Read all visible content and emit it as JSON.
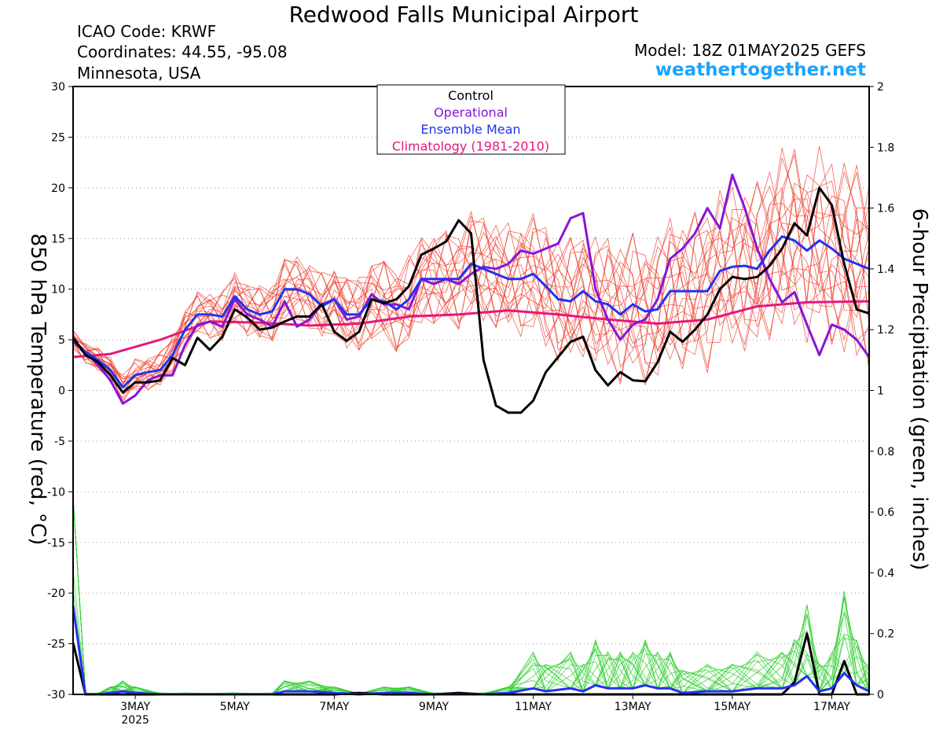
{
  "header": {
    "title": "Redwood Falls Municipal Airport",
    "icao": "ICAO Code: KRWF",
    "coords": "Coordinates: 44.55, -95.08",
    "state": "Minnesota, USA",
    "model": "Model: 18Z 01MAY2025 GEFS",
    "site": "weathertogether.net"
  },
  "colors": {
    "control": "#000000",
    "operational": "#8a14d6",
    "ensemble_mean": "#2233ee",
    "climatology": "#e6177f",
    "members_temp": "#ee3322",
    "members_precip": "#22cc22",
    "site": "#1aa3ff"
  },
  "chart_data": {
    "type": "line",
    "ylabel_left": "850 hPa Temperature (red, °C)",
    "ylabel_right": "6-hour Precipitation (green, inches)",
    "ylim_left": [
      -30,
      30
    ],
    "ylim_right": [
      0,
      2
    ],
    "yticks_left": [
      "30",
      "25",
      "20",
      "15",
      "10",
      "5",
      "0",
      "-5",
      "-10",
      "-15",
      "-20",
      "-25",
      "-30"
    ],
    "yticks_right": [
      "2",
      "1.8",
      "1.6",
      "1.4",
      "1.2",
      "1",
      "0.8",
      "0.6",
      "0.4",
      "0.2",
      "0"
    ],
    "xlim": [
      1.75,
      17.75
    ],
    "xticks": [
      {
        "day": 3,
        "label": "3MAY",
        "sub": "2025"
      },
      {
        "day": 5,
        "label": "5MAY",
        "sub": ""
      },
      {
        "day": 7,
        "label": "7MAY",
        "sub": ""
      },
      {
        "day": 9,
        "label": "9MAY",
        "sub": ""
      },
      {
        "day": 11,
        "label": "11MAY",
        "sub": ""
      },
      {
        "day": 13,
        "label": "13MAY",
        "sub": ""
      },
      {
        "day": 15,
        "label": "15MAY",
        "sub": ""
      },
      {
        "day": 17,
        "label": "17MAY",
        "sub": ""
      }
    ],
    "grid": true,
    "legend": {
      "placement": "top-center",
      "entries": [
        {
          "name": "Control",
          "color": "#000000"
        },
        {
          "name": "Operational",
          "color": "#8a14d6"
        },
        {
          "name": "Ensemble Mean",
          "color": "#2233ee"
        },
        {
          "name": "Climatology (1981-2010)",
          "color": "#e6177f"
        }
      ]
    },
    "temperature_series": [
      {
        "name": "Control",
        "color": "#000000",
        "points": [
          [
            1.75,
            5.2
          ],
          [
            2.0,
            3.5
          ],
          [
            2.25,
            2.8
          ],
          [
            2.5,
            1.5
          ],
          [
            2.75,
            -0.2
          ],
          [
            3.0,
            0.8
          ],
          [
            3.25,
            0.8
          ],
          [
            3.5,
            1.0
          ],
          [
            3.75,
            3.2
          ],
          [
            4.0,
            2.5
          ],
          [
            4.25,
            5.2
          ],
          [
            4.5,
            4.0
          ],
          [
            4.75,
            5.3
          ],
          [
            5.0,
            8.0
          ],
          [
            5.25,
            7.2
          ],
          [
            5.5,
            6.0
          ],
          [
            5.75,
            6.2
          ],
          [
            6.0,
            6.8
          ],
          [
            6.25,
            7.3
          ],
          [
            6.5,
            7.3
          ],
          [
            6.75,
            8.5
          ],
          [
            7.0,
            5.8
          ],
          [
            7.25,
            4.9
          ],
          [
            7.5,
            5.8
          ],
          [
            7.75,
            9.0
          ],
          [
            8.0,
            8.6
          ],
          [
            8.25,
            9.0
          ],
          [
            8.5,
            10.3
          ],
          [
            8.75,
            13.4
          ],
          [
            9.0,
            14.0
          ],
          [
            9.25,
            14.7
          ],
          [
            9.5,
            16.8
          ],
          [
            9.75,
            15.5
          ],
          [
            10.0,
            3.0
          ],
          [
            10.25,
            -1.5
          ],
          [
            10.5,
            -2.2
          ],
          [
            10.75,
            -2.2
          ],
          [
            11.0,
            -1.0
          ],
          [
            11.25,
            1.8
          ],
          [
            11.5,
            3.3
          ],
          [
            11.75,
            4.8
          ],
          [
            12.0,
            5.3
          ],
          [
            12.25,
            2.0
          ],
          [
            12.5,
            0.5
          ],
          [
            12.75,
            1.8
          ],
          [
            13.0,
            1.0
          ],
          [
            13.25,
            0.9
          ],
          [
            13.5,
            2.8
          ],
          [
            13.75,
            5.8
          ],
          [
            14.0,
            4.8
          ],
          [
            14.25,
            6.0
          ],
          [
            14.5,
            7.5
          ],
          [
            14.75,
            10.0
          ],
          [
            15.0,
            11.2
          ],
          [
            15.25,
            11.0
          ],
          [
            15.5,
            11.2
          ],
          [
            15.75,
            12.3
          ],
          [
            16.0,
            14.0
          ],
          [
            16.25,
            16.5
          ],
          [
            16.5,
            15.3
          ],
          [
            16.75,
            20.0
          ],
          [
            17.0,
            18.3
          ],
          [
            17.25,
            12.5
          ],
          [
            17.5,
            8.0
          ],
          [
            17.75,
            7.6
          ]
        ]
      },
      {
        "name": "Operational",
        "color": "#8a14d6",
        "points": [
          [
            1.75,
            4.8
          ],
          [
            2.0,
            3.8
          ],
          [
            2.25,
            2.5
          ],
          [
            2.5,
            1.0
          ],
          [
            2.75,
            -1.3
          ],
          [
            3.0,
            -0.5
          ],
          [
            3.25,
            1.0
          ],
          [
            3.5,
            1.5
          ],
          [
            3.75,
            1.5
          ],
          [
            4.0,
            4.5
          ],
          [
            4.25,
            6.5
          ],
          [
            4.5,
            6.8
          ],
          [
            4.75,
            6.3
          ],
          [
            5.0,
            9.0
          ],
          [
            5.25,
            7.5
          ],
          [
            5.5,
            7.0
          ],
          [
            5.75,
            6.3
          ],
          [
            6.0,
            8.8
          ],
          [
            6.25,
            6.3
          ],
          [
            6.5,
            7.0
          ],
          [
            6.75,
            8.5
          ],
          [
            7.0,
            9.0
          ],
          [
            7.25,
            7.0
          ],
          [
            7.5,
            7.3
          ],
          [
            7.75,
            9.5
          ],
          [
            8.0,
            8.5
          ],
          [
            8.25,
            8.5
          ],
          [
            8.5,
            8.0
          ],
          [
            8.75,
            11.0
          ],
          [
            9.0,
            10.5
          ],
          [
            9.25,
            11.0
          ],
          [
            9.5,
            10.5
          ],
          [
            9.75,
            11.5
          ],
          [
            10.0,
            12.2
          ],
          [
            10.25,
            12.0
          ],
          [
            10.5,
            12.5
          ],
          [
            10.75,
            13.8
          ],
          [
            11.0,
            13.5
          ],
          [
            11.25,
            14.0
          ],
          [
            11.5,
            14.5
          ],
          [
            11.75,
            17.0
          ],
          [
            12.0,
            17.5
          ],
          [
            12.25,
            10.0
          ],
          [
            12.5,
            7.0
          ],
          [
            12.75,
            5.0
          ],
          [
            13.0,
            6.5
          ],
          [
            13.25,
            7.0
          ],
          [
            13.5,
            9.0
          ],
          [
            13.75,
            13.0
          ],
          [
            14.0,
            14.0
          ],
          [
            14.25,
            15.5
          ],
          [
            14.5,
            18.0
          ],
          [
            14.75,
            16.0
          ],
          [
            15.0,
            21.3
          ],
          [
            15.25,
            18.0
          ],
          [
            15.5,
            14.0
          ],
          [
            15.75,
            11.0
          ],
          [
            16.0,
            8.7
          ],
          [
            16.25,
            9.7
          ],
          [
            16.5,
            6.5
          ],
          [
            16.75,
            3.5
          ],
          [
            17.0,
            6.5
          ],
          [
            17.25,
            6.0
          ],
          [
            17.5,
            5.0
          ],
          [
            17.75,
            3.3
          ]
        ]
      },
      {
        "name": "Ensemble Mean",
        "color": "#2233ee",
        "points": [
          [
            1.75,
            5.0
          ],
          [
            2.0,
            3.8
          ],
          [
            2.25,
            3.0
          ],
          [
            2.5,
            2.0
          ],
          [
            2.75,
            0.3
          ],
          [
            3.0,
            1.5
          ],
          [
            3.25,
            1.8
          ],
          [
            3.5,
            2.0
          ],
          [
            3.75,
            3.5
          ],
          [
            4.0,
            6.0
          ],
          [
            4.25,
            7.5
          ],
          [
            4.5,
            7.5
          ],
          [
            4.75,
            7.3
          ],
          [
            5.0,
            9.3
          ],
          [
            5.25,
            8.0
          ],
          [
            5.5,
            7.5
          ],
          [
            5.75,
            7.8
          ],
          [
            6.0,
            10.0
          ],
          [
            6.25,
            10.0
          ],
          [
            6.5,
            9.5
          ],
          [
            6.75,
            8.3
          ],
          [
            7.0,
            9.0
          ],
          [
            7.25,
            7.5
          ],
          [
            7.5,
            7.5
          ],
          [
            7.75,
            9.0
          ],
          [
            8.0,
            8.8
          ],
          [
            8.25,
            8.0
          ],
          [
            8.5,
            9.0
          ],
          [
            8.75,
            11.0
          ],
          [
            9.0,
            11.0
          ],
          [
            9.25,
            11.0
          ],
          [
            9.5,
            11.0
          ],
          [
            9.75,
            12.5
          ],
          [
            10.0,
            12.0
          ],
          [
            10.25,
            11.5
          ],
          [
            10.5,
            11.0
          ],
          [
            10.75,
            11.0
          ],
          [
            11.0,
            11.5
          ],
          [
            11.25,
            10.3
          ],
          [
            11.5,
            9.0
          ],
          [
            11.75,
            8.8
          ],
          [
            12.0,
            9.8
          ],
          [
            12.25,
            8.8
          ],
          [
            12.5,
            8.5
          ],
          [
            12.75,
            7.5
          ],
          [
            13.0,
            8.5
          ],
          [
            13.25,
            7.8
          ],
          [
            13.5,
            8.0
          ],
          [
            13.75,
            9.8
          ],
          [
            14.0,
            9.8
          ],
          [
            14.25,
            9.8
          ],
          [
            14.5,
            9.8
          ],
          [
            14.75,
            11.8
          ],
          [
            15.0,
            12.2
          ],
          [
            15.25,
            12.3
          ],
          [
            15.5,
            12.0
          ],
          [
            15.75,
            13.8
          ],
          [
            16.0,
            15.2
          ],
          [
            16.25,
            14.8
          ],
          [
            16.5,
            13.8
          ],
          [
            16.75,
            14.8
          ],
          [
            17.0,
            14.0
          ],
          [
            17.25,
            13.0
          ],
          [
            17.5,
            12.5
          ],
          [
            17.75,
            12.0
          ]
        ]
      },
      {
        "name": "Climatology (1981-2010)",
        "color": "#e6177f",
        "points": [
          [
            1.75,
            3.3
          ],
          [
            2.5,
            3.6
          ],
          [
            3.5,
            5.0
          ],
          [
            4.5,
            6.8
          ],
          [
            5.5,
            6.7
          ],
          [
            6.5,
            6.4
          ],
          [
            7.5,
            6.6
          ],
          [
            8.5,
            7.3
          ],
          [
            9.5,
            7.5
          ],
          [
            10.5,
            7.9
          ],
          [
            11.5,
            7.5
          ],
          [
            12.5,
            7.0
          ],
          [
            13.5,
            6.6
          ],
          [
            14.5,
            7.0
          ],
          [
            15.5,
            8.3
          ],
          [
            16.5,
            8.7
          ],
          [
            17.75,
            8.8
          ]
        ]
      }
    ],
    "precipitation_series": [
      {
        "name": "Control",
        "color": "#000000",
        "points": [
          [
            1.75,
            0.17
          ],
          [
            2.0,
            0.0
          ],
          [
            2.5,
            0.0
          ],
          [
            3.0,
            0.0
          ],
          [
            4.0,
            0.0
          ],
          [
            6.0,
            0.0
          ],
          [
            6.5,
            0.0
          ],
          [
            7.0,
            0.0
          ],
          [
            7.5,
            0.005
          ],
          [
            8.0,
            0.0
          ],
          [
            9.0,
            0.0
          ],
          [
            9.5,
            0.005
          ],
          [
            10.0,
            0.0
          ],
          [
            11.0,
            0.0
          ],
          [
            12.0,
            0.0
          ],
          [
            13.0,
            0.0
          ],
          [
            14.0,
            0.0
          ],
          [
            15.0,
            0.0
          ],
          [
            16.0,
            0.0
          ],
          [
            16.25,
            0.04
          ],
          [
            16.5,
            0.2
          ],
          [
            16.75,
            0.0
          ],
          [
            17.0,
            0.0
          ],
          [
            17.25,
            0.11
          ],
          [
            17.5,
            0.0
          ],
          [
            17.75,
            0.0
          ]
        ]
      },
      {
        "name": "Ensemble Mean",
        "color": "#2233ee",
        "points": [
          [
            1.75,
            0.29
          ],
          [
            2.0,
            0.0
          ],
          [
            2.25,
            0.0
          ],
          [
            2.5,
            0.005
          ],
          [
            2.75,
            0.01
          ],
          [
            3.0,
            0.005
          ],
          [
            3.5,
            0.0
          ],
          [
            4.0,
            0.0
          ],
          [
            5.0,
            0.0
          ],
          [
            5.75,
            0.0
          ],
          [
            6.0,
            0.01
          ],
          [
            6.5,
            0.01
          ],
          [
            7.0,
            0.005
          ],
          [
            7.5,
            0.0
          ],
          [
            8.0,
            0.005
          ],
          [
            8.5,
            0.005
          ],
          [
            9.0,
            0.0
          ],
          [
            10.0,
            0.0
          ],
          [
            10.5,
            0.005
          ],
          [
            11.0,
            0.02
          ],
          [
            11.25,
            0.01
          ],
          [
            11.75,
            0.02
          ],
          [
            12.0,
            0.01
          ],
          [
            12.25,
            0.03
          ],
          [
            12.5,
            0.02
          ],
          [
            12.75,
            0.02
          ],
          [
            13.0,
            0.02
          ],
          [
            13.25,
            0.03
          ],
          [
            13.5,
            0.02
          ],
          [
            13.75,
            0.02
          ],
          [
            14.0,
            0.005
          ],
          [
            14.5,
            0.01
          ],
          [
            15.0,
            0.01
          ],
          [
            15.5,
            0.02
          ],
          [
            16.0,
            0.02
          ],
          [
            16.25,
            0.03
          ],
          [
            16.5,
            0.06
          ],
          [
            16.75,
            0.01
          ],
          [
            17.0,
            0.02
          ],
          [
            17.25,
            0.07
          ],
          [
            17.5,
            0.03
          ],
          [
            17.75,
            0.01
          ]
        ]
      }
    ]
  }
}
